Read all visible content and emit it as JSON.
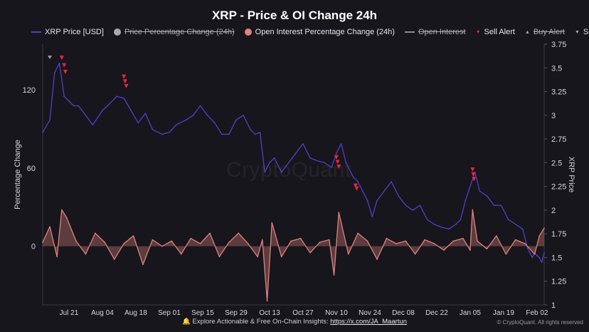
{
  "chart_data": {
    "type": "line",
    "title": "XRP - Price & OI Change 24h",
    "ylabel_left": "Percentage Change",
    "ylabel_right": "XRP Price",
    "left_axis": {
      "ticks": [
        0,
        60,
        120
      ],
      "ylim": [
        -45,
        155
      ]
    },
    "right_axis": {
      "ticks": [
        1,
        1.25,
        1.5,
        1.75,
        2,
        2.25,
        2.5,
        2.75,
        3,
        3.25,
        3.5,
        3.75
      ],
      "tick_labels": [
        "1",
        "1.25",
        "1.5",
        "1.75",
        "2",
        "2.25",
        "2.5",
        "2.75",
        "3",
        "3.25",
        "3.5",
        "3.75"
      ],
      "ylim": [
        1,
        3.75
      ]
    },
    "x_tick_labels": [
      "Jul 21",
      "Aug 04",
      "Aug 18",
      "Sep 01",
      "Sep 15",
      "Sep 29",
      "Oct 13",
      "Oct 27",
      "Nov 10",
      "Nov 24",
      "Dec 08",
      "Dec 22",
      "Jan 05",
      "Jan 19",
      "Feb 02"
    ],
    "x_range_days": [
      0,
      210
    ],
    "x_ticks_days": [
      11,
      25,
      39,
      53,
      67,
      81,
      95,
      109,
      123,
      137,
      151,
      165,
      179,
      193,
      207
    ],
    "grid": false,
    "legend_position": "top",
    "series": [
      {
        "name": "XRP Price [USD]",
        "axis": "right",
        "color": "#5140c8",
        "x_days": [
          0,
          3,
          5,
          7,
          9,
          11,
          13,
          15,
          18,
          21,
          25,
          28,
          31,
          34,
          37,
          40,
          43,
          46,
          50,
          53,
          56,
          60,
          63,
          66,
          69,
          72,
          75,
          78,
          81,
          84,
          87,
          89,
          91,
          93,
          95,
          97,
          100,
          103,
          106,
          109,
          112,
          115,
          118,
          121,
          123,
          125,
          127,
          130,
          132,
          134,
          136,
          138,
          140,
          143,
          146,
          149,
          152,
          155,
          158,
          161,
          164,
          167,
          170,
          173,
          175,
          177,
          179,
          181,
          183,
          186,
          189,
          192,
          195,
          198,
          201,
          203,
          204,
          205,
          206,
          207,
          208,
          209,
          210
        ],
        "values": [
          2.82,
          2.95,
          3.45,
          3.55,
          3.2,
          3.15,
          3.1,
          3.1,
          3.0,
          2.9,
          3.05,
          3.12,
          3.2,
          3.18,
          3.05,
          2.92,
          3.02,
          2.85,
          2.8,
          2.82,
          2.9,
          2.95,
          3.0,
          3.1,
          3.0,
          2.92,
          2.8,
          2.8,
          2.95,
          3.0,
          2.85,
          2.8,
          2.82,
          2.4,
          2.5,
          2.55,
          2.4,
          2.5,
          2.6,
          2.7,
          2.55,
          2.52,
          2.5,
          2.45,
          2.6,
          2.7,
          2.5,
          2.35,
          2.3,
          2.2,
          2.1,
          1.93,
          2.1,
          2.2,
          2.3,
          2.15,
          2.05,
          2.0,
          2.05,
          1.9,
          1.85,
          1.82,
          1.8,
          1.85,
          1.9,
          2.1,
          2.25,
          2.4,
          2.2,
          2.15,
          2.05,
          2.05,
          1.9,
          1.85,
          1.8,
          1.6,
          1.55,
          1.5,
          1.55,
          1.52,
          1.5,
          1.45,
          1.55
        ]
      },
      {
        "name": "Open Interest Percentage Change (24h)",
        "axis": "left",
        "color": "#e0837e",
        "x_days": [
          0,
          3,
          6,
          8,
          10,
          14,
          18,
          22,
          26,
          30,
          34,
          38,
          42,
          46,
          50,
          54,
          58,
          62,
          66,
          70,
          74,
          78,
          82,
          86,
          90,
          92,
          94,
          96,
          100,
          104,
          108,
          112,
          116,
          120,
          122,
          124,
          128,
          132,
          136,
          140,
          144,
          148,
          152,
          156,
          160,
          164,
          168,
          172,
          176,
          179,
          180,
          182,
          186,
          190,
          194,
          198,
          202,
          206,
          208,
          210
        ],
        "values": [
          3,
          15,
          -8,
          28,
          22,
          4,
          -6,
          10,
          3,
          -10,
          2,
          8,
          -14,
          5,
          0,
          4,
          -6,
          6,
          2,
          10,
          -8,
          3,
          10,
          2,
          -8,
          5,
          -42,
          18,
          -8,
          4,
          6,
          -5,
          3,
          5,
          -22,
          26,
          -6,
          10,
          4,
          -10,
          6,
          2,
          4,
          -6,
          5,
          2,
          -3,
          4,
          6,
          -3,
          28,
          4,
          -2,
          8,
          -6,
          5,
          2,
          -6,
          8,
          14
        ]
      },
      {
        "name": "Sell Alert",
        "axis": "right",
        "type": "marker",
        "color": "#e5283b",
        "x_days": [
          8,
          9,
          9.5,
          34,
          34.5,
          35,
          123,
          123.5,
          124,
          131,
          131.5,
          180,
          180.3,
          180.6
        ],
        "values": [
          3.6,
          3.52,
          3.45,
          3.4,
          3.35,
          3.3,
          2.55,
          2.5,
          2.45,
          2.25,
          2.22,
          2.42,
          2.37,
          2.32
        ]
      }
    ],
    "legend": [
      {
        "label": "XRP Price [USD]",
        "symbol": "line",
        "color": "#5140c8",
        "enabled": true
      },
      {
        "label": "Price Percentage Change (24h)",
        "symbol": "dot",
        "color": "#a9a9b1",
        "enabled": false
      },
      {
        "label": "Open Interest Percentage Change (24h)",
        "symbol": "dot",
        "color": "#e0837e",
        "enabled": true
      },
      {
        "label": "Open Interest",
        "symbol": "line",
        "color": "#8b8b92",
        "enabled": false
      },
      {
        "label": "Sell Alert",
        "symbol": "triangle-down",
        "color": "#e5283b",
        "enabled": true
      },
      {
        "label": "Buy Alert",
        "symbol": "triangle-up",
        "color": "#a9a9b1",
        "enabled": false
      },
      {
        "label": "Scale",
        "symbol": "triangle-down",
        "color": "#a9a9b1",
        "enabled": true
      }
    ]
  },
  "watermark": "CryptoQuant",
  "footer": {
    "icon": "bell-icon",
    "text": "Explore Actionable & Free On-Chain Insights:",
    "link": "https://x.com/JA_Maartun",
    "copyright": "© CryptoQuant. All rights reserved"
  }
}
